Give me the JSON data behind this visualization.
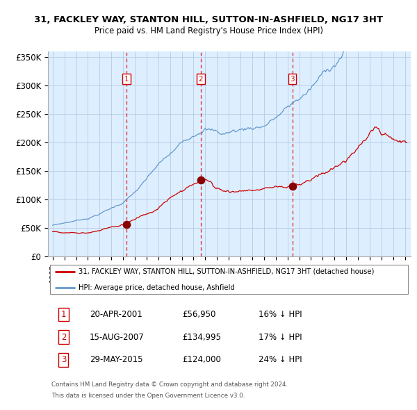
{
  "title1": "31, FACKLEY WAY, STANTON HILL, SUTTON-IN-ASHFIELD, NG17 3HT",
  "title2": "Price paid vs. HM Land Registry's House Price Index (HPI)",
  "legend_red": "31, FACKLEY WAY, STANTON HILL, SUTTON-IN-ASHFIELD, NG17 3HT (detached house)",
  "legend_blue": "HPI: Average price, detached house, Ashfield",
  "sale1_date": "20-APR-2001",
  "sale1_price": "£56,950",
  "sale1_hpi": "16% ↓ HPI",
  "sale2_date": "15-AUG-2007",
  "sale2_price": "£134,995",
  "sale2_hpi": "17% ↓ HPI",
  "sale3_date": "29-MAY-2015",
  "sale3_price": "£124,000",
  "sale3_hpi": "24% ↓ HPI",
  "footer1": "Contains HM Land Registry data © Crown copyright and database right 2024.",
  "footer2": "This data is licensed under the Open Government Licence v3.0.",
  "red_color": "#cc0000",
  "blue_color": "#6699cc",
  "bg_color": "#ddeeff",
  "grid_color": "#b0c4de",
  "marker_color": "#880000",
  "dashed_color": "#dd0000",
  "ylim_max": 360000,
  "yticks": [
    0,
    50000,
    100000,
    150000,
    200000,
    250000,
    300000,
    350000
  ],
  "ytick_labels": [
    "£0",
    "£50K",
    "£100K",
    "£150K",
    "£200K",
    "£250K",
    "£300K",
    "£350K"
  ],
  "sale_dates_yr": [
    2001.29,
    2007.62,
    2015.41
  ],
  "sale_prices": [
    56950,
    134995,
    124000
  ]
}
